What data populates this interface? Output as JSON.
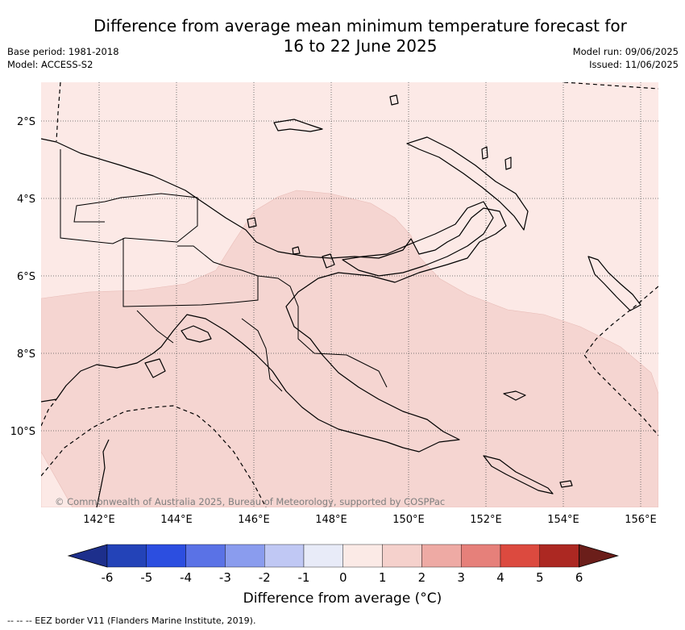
{
  "header": {
    "title_line1": "Difference from average mean minimum temperature forecast for",
    "title_line2": "16 to 22 June 2025",
    "base_period": "Base period: 1981-2018",
    "model": "Model: ACCESS-S2",
    "model_run": "Model run: 09/06/2025",
    "issued": "Issued: 11/06/2025"
  },
  "map": {
    "lat_labels": [
      "2°S",
      "4°S",
      "6°S",
      "8°S",
      "10°S"
    ],
    "lon_labels": [
      "142°E",
      "144°E",
      "146°E",
      "148°E",
      "150°E",
      "152°E",
      "154°E",
      "156°E"
    ],
    "copyright": "© Commonwealth of Australia 2025, Bureau of Meteorology, supported by COSPPac",
    "colors": {
      "anomaly_0_to_1": "#fce9e6",
      "anomaly_1_to_2": "#f5d5d1",
      "land_outline": "#000000",
      "eez_border": "#000000",
      "graticule": "#555555"
    }
  },
  "colorbar": {
    "title": "Difference from average (°C)",
    "ticks": [
      "-6",
      "-5",
      "-4",
      "-3",
      "-2",
      "-1",
      "0",
      "1",
      "2",
      "3",
      "4",
      "5",
      "6"
    ],
    "colors": [
      "#1d2f8c",
      "#2343b8",
      "#2c4ee0",
      "#5a72e6",
      "#8a9cee",
      "#c0c8f4",
      "#e8ebf8",
      "#fbeae6",
      "#f5d1cc",
      "#eeaaa4",
      "#e6807a",
      "#dc4a3f",
      "#ac2822",
      "#6b1e1a"
    ]
  },
  "footer": {
    "eez_legend": "--  --  -- EEZ border V11 (Flanders Marine Institute, 2019)."
  }
}
